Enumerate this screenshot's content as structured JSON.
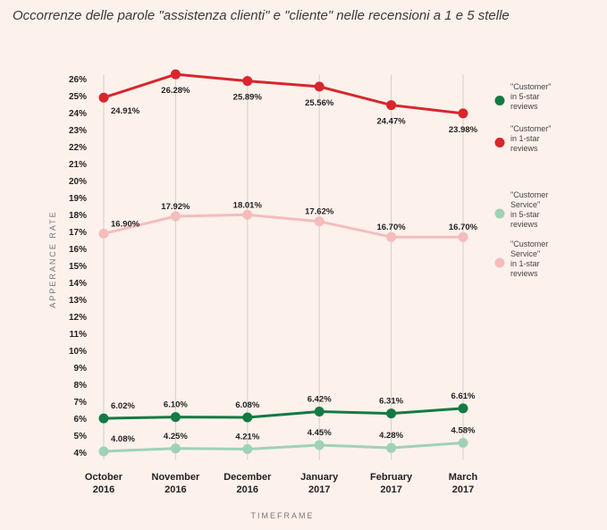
{
  "title": "Occorrenze delle parole \"assistenza clienti\" e \"cliente\" nelle recensioni a 1 e 5 stelle",
  "chart_data": {
    "type": "line",
    "xlabel": "TIMEFRAME",
    "ylabel": "APPERANCE RATE",
    "ylim": [
      4,
      26
    ],
    "y_tick_step": 1,
    "y_tick_suffix": "%",
    "grid": "vertical lines at each category",
    "legend_position": "right",
    "categories": [
      [
        "October",
        "2016"
      ],
      [
        "November",
        "2016"
      ],
      [
        "December",
        "2016"
      ],
      [
        "January",
        "2017"
      ],
      [
        "February",
        "2017"
      ],
      [
        "March",
        "2017"
      ]
    ],
    "series": [
      {
        "name": "\"Customer\" in 5-star reviews",
        "legend_lines": [
          "\"Customer\"",
          "in 5-star",
          "reviews"
        ],
        "color": "#137a43",
        "values": [
          6.02,
          6.1,
          6.08,
          6.42,
          6.31,
          6.61
        ],
        "labels": [
          "6.02%",
          "6.10%",
          "6.08%",
          "6.42%",
          "6.31%",
          "6.61%"
        ]
      },
      {
        "name": "\"Customer\" in 1-star reviews",
        "legend_lines": [
          "\"Customer\"",
          "in 1-star",
          "reviews"
        ],
        "color": "#d8262c",
        "values": [
          24.91,
          26.28,
          25.89,
          25.56,
          24.47,
          23.98
        ],
        "labels": [
          "24.91%",
          "26.28%",
          "25.89%",
          "25.56%",
          "24.47%",
          "23.98%"
        ]
      },
      {
        "name": "\"Customer Service\" in 5-star reviews",
        "legend_lines": [
          "\"Customer",
          "Service\"",
          "in 5-star",
          "reviews"
        ],
        "color": "#9fd2b5",
        "values": [
          4.08,
          4.25,
          4.21,
          4.45,
          4.28,
          4.58
        ],
        "labels": [
          "4.08%",
          "4.25%",
          "4.21%",
          "4.45%",
          "4.28%",
          "4.58%"
        ]
      },
      {
        "name": "\"Customer Service\" in 1-star reviews",
        "legend_lines": [
          "\"Customer",
          "Service\"",
          "in 1-star",
          "reviews"
        ],
        "color": "#f5bcbc",
        "values": [
          16.9,
          17.92,
          18.01,
          17.62,
          16.7,
          16.7
        ],
        "labels": [
          "16.90%",
          "17.92%",
          "18.01%",
          "17.62%",
          "16.70%",
          "16.70%"
        ]
      }
    ]
  }
}
